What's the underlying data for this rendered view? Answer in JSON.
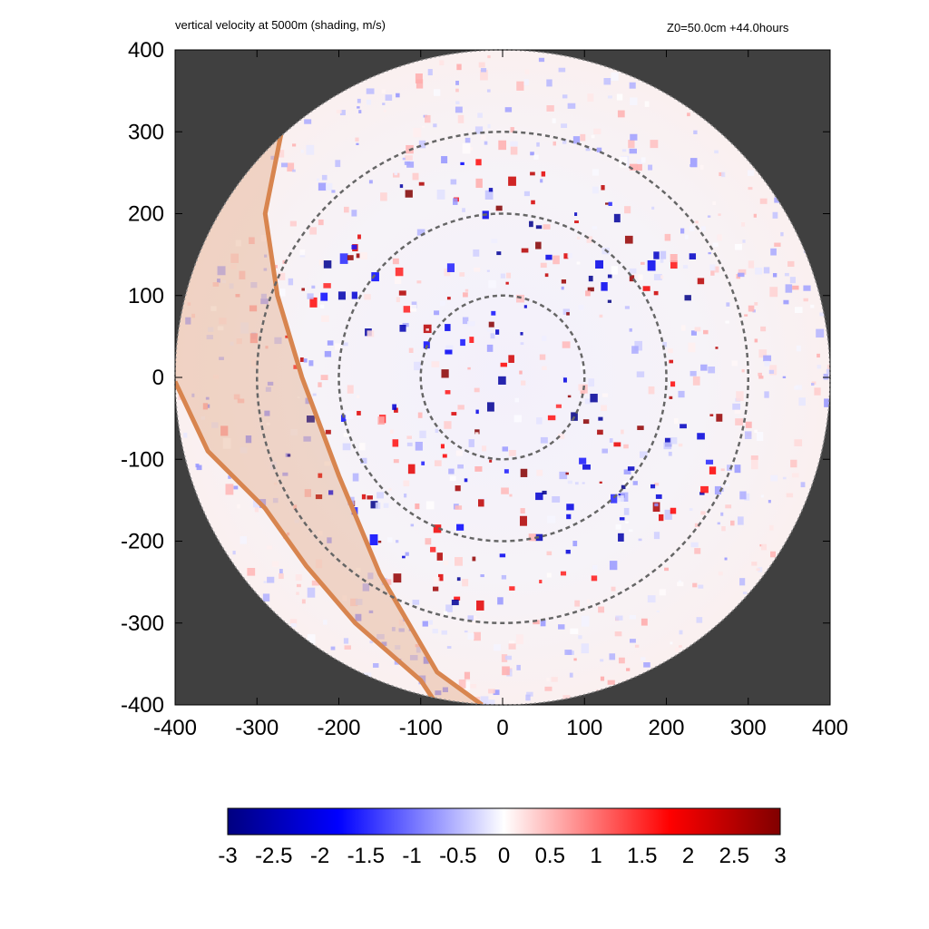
{
  "header": {
    "title": "vertical velocity at 5000m (shading, m/s)",
    "info": "Z0=50.0cm  +44.0hours"
  },
  "chart_data": {
    "type": "heatmap",
    "title": "vertical velocity at 5000m (shading, m/s)",
    "annotation": "Z0=50.0cm  +44.0hours",
    "xlabel": "",
    "ylabel": "",
    "xlim": [
      -400,
      400
    ],
    "ylim": [
      -400,
      400
    ],
    "x_ticks": [
      -400,
      -300,
      -200,
      -100,
      0,
      100,
      200,
      300,
      400
    ],
    "y_ticks": [
      400,
      300,
      200,
      100,
      0,
      -100,
      -200,
      -300,
      -400
    ],
    "domain_radius": 400,
    "range_rings_radius": [
      100,
      200,
      300
    ],
    "background_color": "#404040",
    "colorbar": {
      "min": -3,
      "max": 3,
      "ticks": [
        "-3",
        "-2.5",
        "-2",
        "-1.5",
        "-1",
        "-0.5",
        "0",
        "0.5",
        "1",
        "1.5",
        "2",
        "2.5",
        "3"
      ],
      "colors": [
        "#000080",
        "#0000ff",
        "#ffffff",
        "#ff0000",
        "#800000"
      ]
    },
    "band_color": "#d8854f",
    "band_left_edge": [
      [
        -270,
        300
      ],
      [
        -290,
        200
      ],
      [
        -275,
        100
      ],
      [
        -245,
        0
      ],
      [
        -200,
        -120
      ],
      [
        -150,
        -240
      ],
      [
        -80,
        -360
      ],
      [
        -25,
        -400
      ]
    ],
    "band_right_edge": [
      [
        -400,
        -5
      ],
      [
        -360,
        -90
      ],
      [
        -290,
        -160
      ],
      [
        -240,
        -230
      ],
      [
        -180,
        -300
      ],
      [
        -100,
        -370
      ],
      [
        -80,
        -400
      ]
    ]
  }
}
